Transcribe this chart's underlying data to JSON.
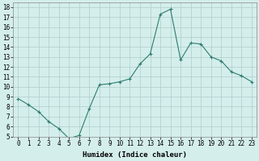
{
  "x": [
    0,
    1,
    2,
    3,
    4,
    5,
    6,
    7,
    8,
    9,
    10,
    11,
    12,
    13,
    14,
    15,
    16,
    17,
    18,
    19,
    20,
    21,
    22,
    23
  ],
  "y": [
    8.8,
    8.2,
    7.5,
    6.5,
    5.8,
    4.8,
    5.1,
    7.8,
    10.2,
    10.3,
    10.5,
    10.8,
    12.3,
    13.3,
    17.3,
    17.8,
    12.7,
    14.4,
    14.3,
    13.0,
    12.6,
    11.5,
    11.1,
    10.5
  ],
  "xlabel": "Humidex (Indice chaleur)",
  "ylabel": "",
  "xlim": [
    -0.5,
    23.5
  ],
  "ylim": [
    5,
    18.5
  ],
  "yticks": [
    5,
    6,
    7,
    8,
    9,
    10,
    11,
    12,
    13,
    14,
    15,
    16,
    17,
    18
  ],
  "xticks": [
    0,
    1,
    2,
    3,
    4,
    5,
    6,
    7,
    8,
    9,
    10,
    11,
    12,
    13,
    14,
    15,
    16,
    17,
    18,
    19,
    20,
    21,
    22,
    23
  ],
  "line_color": "#2d7d6f",
  "marker": "+",
  "bg_color": "#d4eeec",
  "grid_color": "#b0ccc9",
  "label_fontsize": 6.5,
  "tick_fontsize": 5.5
}
